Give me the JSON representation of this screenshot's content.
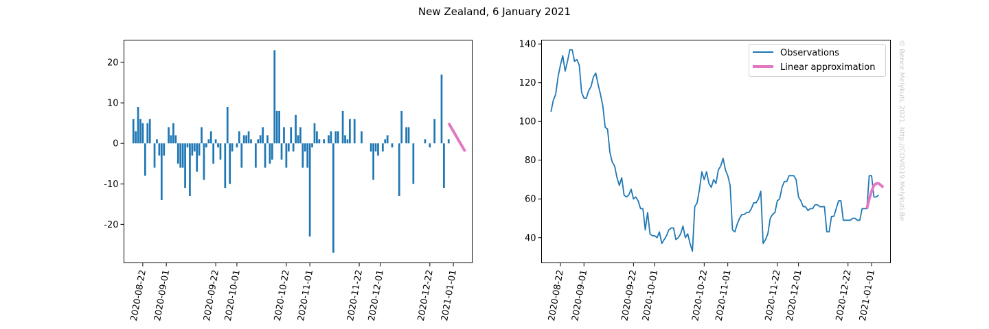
{
  "figure": {
    "title": "New Zealand, 6 January 2021",
    "credit": "© Bence Melykuti, 2021. http://COVID19.Melykuti.Be"
  },
  "colors": {
    "observations": "#1f77b4",
    "approximation": "#e377c2",
    "credit": "#c8c8c8"
  },
  "chart_data": [
    {
      "type": "bar",
      "x_start": "2020-08-18",
      "x_range": [
        "2020-08-14",
        "2021-01-09"
      ],
      "ylim": [
        -29.5,
        25.5
      ],
      "grid": false,
      "xticks": [
        "2020-08-22",
        "2020-09-01",
        "2020-09-22",
        "2020-10-01",
        "2020-10-22",
        "2020-11-01",
        "2020-11-22",
        "2020-12-01",
        "2020-12-22",
        "2021-01-01"
      ],
      "yticks": [
        -20,
        -10,
        0,
        10,
        20
      ],
      "values": [
        6,
        3,
        9,
        6,
        5,
        -8,
        5,
        6,
        0,
        -6,
        1,
        -3,
        -14,
        -3,
        0,
        4,
        2,
        5,
        2,
        -5,
        -6,
        -6,
        -11,
        -1,
        -13,
        -3,
        -2,
        -7,
        -3,
        4,
        -9,
        -1,
        1,
        3,
        -5,
        1,
        -1,
        -4,
        0,
        -11,
        9,
        -10,
        -2,
        0,
        -1,
        3,
        -6,
        2,
        2,
        3,
        1,
        0,
        -6,
        1,
        2,
        4,
        -6,
        2,
        -5,
        -4,
        23,
        8,
        8,
        -4,
        4,
        -6,
        -2,
        4,
        -2,
        7,
        2,
        4,
        -6,
        -2,
        -6,
        -23,
        -1,
        5,
        3,
        1,
        0,
        1,
        0,
        2,
        3,
        -27,
        3,
        3,
        0,
        8,
        2,
        1,
        6,
        0,
        6,
        0,
        0,
        3,
        0,
        0,
        0,
        -2,
        -9,
        -2,
        -3,
        0,
        -2,
        1,
        2,
        0,
        -1,
        0,
        0,
        -13,
        8,
        0,
        4,
        4,
        0,
        -10,
        0,
        0,
        0,
        0,
        1,
        0,
        -1,
        0,
        6,
        0,
        0,
        17,
        -11,
        0,
        1
      ],
      "approximation": {
        "name": "Linear approximation",
        "x": [
          "2020-12-30",
          "2021-01-06"
        ],
        "y": [
          5,
          -2
        ]
      }
    },
    {
      "type": "line",
      "x_start": "2020-08-18",
      "x_range": [
        "2020-08-14",
        "2021-01-09"
      ],
      "ylim": [
        27,
        142
      ],
      "grid": false,
      "legend_position": "top-right",
      "xticks": [
        "2020-08-22",
        "2020-09-01",
        "2020-09-22",
        "2020-10-01",
        "2020-10-22",
        "2020-11-01",
        "2020-11-22",
        "2020-12-01",
        "2020-12-22",
        "2021-01-01"
      ],
      "yticks": [
        40,
        60,
        80,
        100,
        120,
        140
      ],
      "series": [
        {
          "name": "Observations",
          "values": [
            105,
            111,
            114,
            123,
            129,
            134,
            126,
            131,
            137,
            137,
            131,
            132,
            129,
            115,
            112,
            112,
            116,
            118,
            123,
            125,
            119,
            114,
            108,
            97,
            96,
            84,
            79,
            77,
            71,
            67,
            71,
            62,
            61,
            62,
            65,
            60,
            61,
            59,
            55,
            55,
            44,
            53,
            42,
            41,
            41,
            40,
            43,
            37,
            39,
            41,
            44,
            45,
            45,
            39,
            40,
            42,
            46,
            40,
            42,
            37,
            33,
            56,
            58,
            65,
            74,
            70,
            74,
            68,
            66,
            70,
            68,
            75,
            77,
            81,
            75,
            72,
            67,
            44,
            43,
            47,
            50,
            52,
            52,
            53,
            53,
            55,
            58,
            58,
            60,
            64,
            37,
            39,
            42,
            50,
            52,
            53,
            59,
            60,
            66,
            69,
            69,
            72,
            72,
            72,
            70,
            61,
            59,
            56,
            56,
            54,
            55,
            55,
            57,
            57,
            56,
            56,
            56,
            43,
            43,
            51,
            51,
            55,
            59,
            59,
            49,
            49,
            49,
            49,
            50,
            50,
            49,
            49,
            55,
            55,
            55,
            72,
            72,
            61,
            61,
            62
          ]
        },
        {
          "name": "Linear approximation",
          "x": [
            "2020-12-30",
            "2020-12-31",
            "2021-01-01",
            "2021-01-02",
            "2021-01-03",
            "2021-01-04",
            "2021-01-05",
            "2021-01-06"
          ],
          "values": [
            55,
            60,
            64,
            67,
            68,
            68,
            67,
            66
          ]
        }
      ]
    }
  ]
}
